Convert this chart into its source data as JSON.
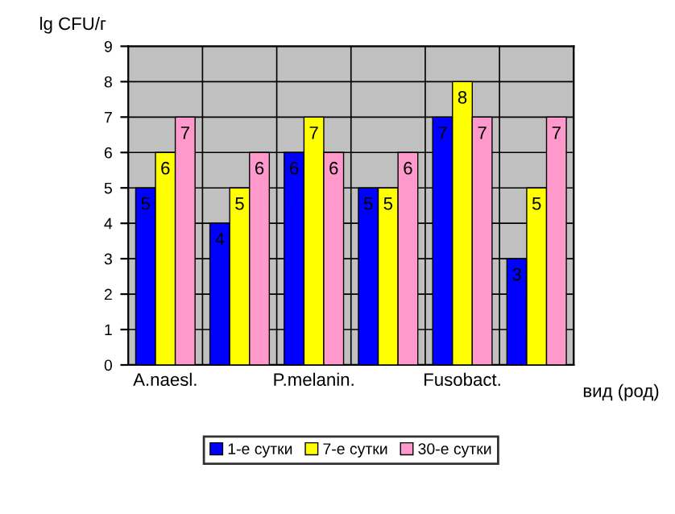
{
  "chart_data": {
    "type": "bar",
    "ylabel": "lg CFU/г",
    "xlabel": "вид (род)",
    "categories": [
      "A.naesl.",
      null,
      "P.melanin.",
      null,
      "Fusobact.",
      null
    ],
    "series": [
      {
        "name": "1-е сутки",
        "color": "#0000ff",
        "values": [
          5,
          4,
          6,
          5,
          7,
          3
        ]
      },
      {
        "name": "7-е сутки",
        "color": "#ffff00",
        "values": [
          6,
          5,
          7,
          5,
          8,
          5
        ]
      },
      {
        "name": "30-е сутки",
        "color": "#ff99cc",
        "values": [
          7,
          6,
          6,
          6,
          7,
          7
        ]
      }
    ],
    "ylim": [
      0,
      9
    ],
    "yticks": [
      0,
      1,
      2,
      3,
      4,
      5,
      6,
      7,
      8,
      9
    ],
    "grid": true,
    "legend": "bottom",
    "data_labels": true
  }
}
